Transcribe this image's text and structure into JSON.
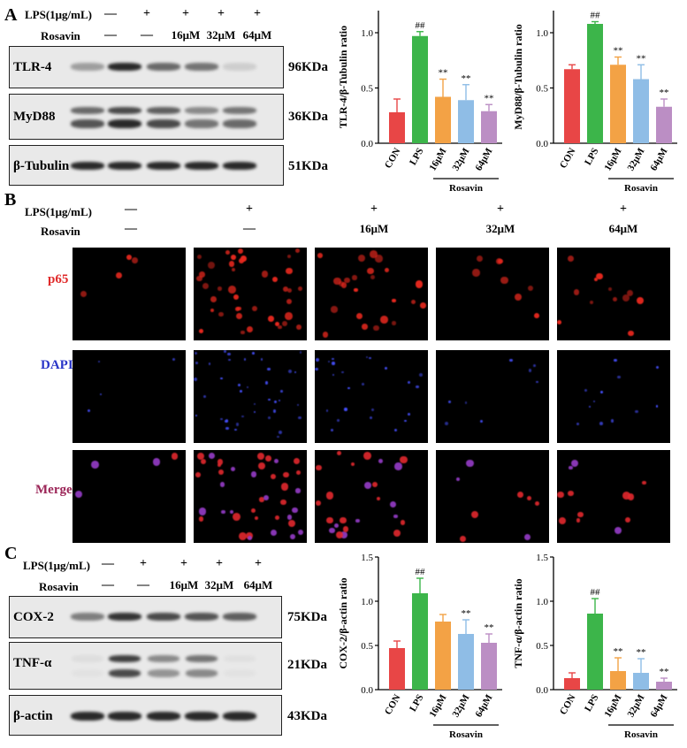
{
  "panels": {
    "A": "A",
    "B": "B",
    "C": "C"
  },
  "treatments": {
    "lps_label": "LPS(1μg/mL)",
    "rosavin_label": "Rosavin",
    "lps_marks": [
      "—",
      "+",
      "+",
      "+",
      "+"
    ],
    "rosavin_marks": [
      "—",
      "—",
      "16μM",
      "32μM",
      "64μM"
    ]
  },
  "panel_a": {
    "blots": [
      {
        "name": "TLR-4",
        "kda": "96KDa"
      },
      {
        "name": "MyD88",
        "kda": "36KDa"
      },
      {
        "name": "β-Tubulin",
        "kda": "51KDa"
      }
    ]
  },
  "panel_b": {
    "rows": [
      "p65",
      "DAPI",
      "Merge"
    ],
    "rosavin_marks": [
      "—",
      "—",
      "16μM",
      "32μM",
      "64μM"
    ]
  },
  "panel_c": {
    "blots": [
      {
        "name": "COX-2",
        "kda": "75KDa"
      },
      {
        "name": "TNF-α",
        "kda": "21KDa"
      },
      {
        "name": "β-actin",
        "kda": "43KDa"
      }
    ]
  },
  "colors": {
    "CON": "#e84646",
    "LPS": "#3cb54a",
    "16μM": "#f3a245",
    "32μM": "#8fbde6",
    "64μM": "#bb8ec4"
  },
  "chart_data": [
    {
      "type": "bar",
      "ylabel": "TLR-4/β-Tubulin ratio",
      "categories": [
        "CON",
        "LPS",
        "16μM",
        "32μM",
        "64μM"
      ],
      "values": [
        0.28,
        0.97,
        0.42,
        0.39,
        0.29
      ],
      "errors": [
        0.12,
        0.04,
        0.16,
        0.14,
        0.06
      ],
      "annotations": [
        "",
        "##",
        "**",
        "**",
        "**"
      ],
      "ylim": [
        0,
        1.2
      ],
      "yticks": [
        "0.0",
        "0.5",
        "1.0"
      ],
      "group_label": "Rosavin"
    },
    {
      "type": "bar",
      "ylabel": "MyD88/β-Tubulin ratio",
      "categories": [
        "CON",
        "LPS",
        "16μM",
        "32μM",
        "64μM"
      ],
      "values": [
        0.67,
        1.08,
        0.71,
        0.58,
        0.33
      ],
      "errors": [
        0.04,
        0.02,
        0.07,
        0.13,
        0.07
      ],
      "annotations": [
        "",
        "##",
        "**",
        "**",
        "**"
      ],
      "ylim": [
        0,
        1.2
      ],
      "yticks": [
        "0.0",
        "0.5",
        "1.0"
      ],
      "group_label": "Rosavin"
    },
    {
      "type": "bar",
      "ylabel": "COX-2/β-actin ratio",
      "categories": [
        "CON",
        "LPS",
        "16μM",
        "32μM",
        "64μM"
      ],
      "values": [
        0.47,
        1.09,
        0.77,
        0.63,
        0.53
      ],
      "errors": [
        0.08,
        0.17,
        0.08,
        0.16,
        0.1
      ],
      "annotations": [
        "",
        "##",
        "",
        "**",
        "**"
      ],
      "ylim": [
        0,
        1.5
      ],
      "yticks": [
        "0.0",
        "0.5",
        "1.0",
        "1.5"
      ],
      "group_label": "Rosavin"
    },
    {
      "type": "bar",
      "ylabel": "TNF-α/β-actin ratio",
      "categories": [
        "CON",
        "LPS",
        "16μM",
        "32μM",
        "64μM"
      ],
      "values": [
        0.13,
        0.86,
        0.21,
        0.19,
        0.09
      ],
      "errors": [
        0.06,
        0.17,
        0.15,
        0.16,
        0.04
      ],
      "annotations": [
        "",
        "##",
        "**",
        "**",
        "**"
      ],
      "ylim": [
        0,
        1.5
      ],
      "yticks": [
        "0.0",
        "0.5",
        "1.0",
        "1.5"
      ],
      "group_label": "Rosavin"
    }
  ]
}
